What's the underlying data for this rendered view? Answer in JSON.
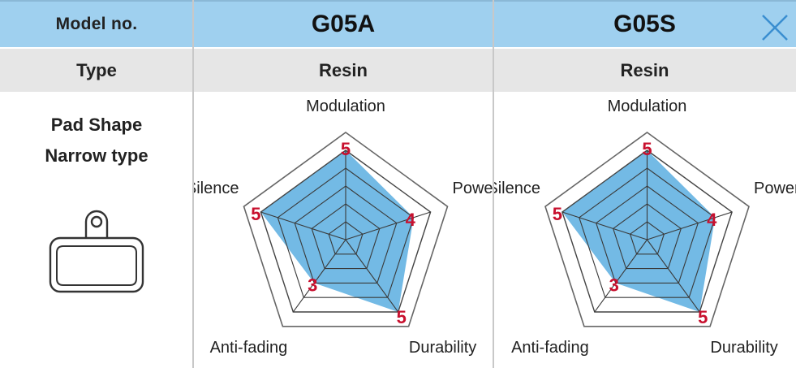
{
  "header": {
    "label": "Model no.",
    "models": [
      "G05A",
      "G05S"
    ]
  },
  "type_row": {
    "label": "Type",
    "values": [
      "Resin",
      "Resin"
    ]
  },
  "pad": {
    "line1": "Pad Shape",
    "line2": "Narrow type"
  },
  "colors": {
    "header_bg": "#9fd0ef",
    "type_bg": "#e6e6e6",
    "fill": "#5aaee0",
    "value_red": "#c8102e",
    "close_icon": "#3a8ed0"
  },
  "icons": {
    "close": "close-icon",
    "pad": "brake-pad-icon"
  },
  "chart_data": [
    {
      "type": "radar",
      "title": "G05A",
      "axes": [
        "Modulation",
        "Power",
        "Durability",
        "Anti-fading",
        "Silence"
      ],
      "values": [
        5,
        4,
        5,
        3,
        5
      ],
      "scale": [
        0,
        5
      ]
    },
    {
      "type": "radar",
      "title": "G05S",
      "axes": [
        "Modulation",
        "Power",
        "Durability",
        "Anti-fading",
        "Silence"
      ],
      "values": [
        5,
        4,
        5,
        3,
        5
      ],
      "scale": [
        0,
        5
      ]
    }
  ]
}
